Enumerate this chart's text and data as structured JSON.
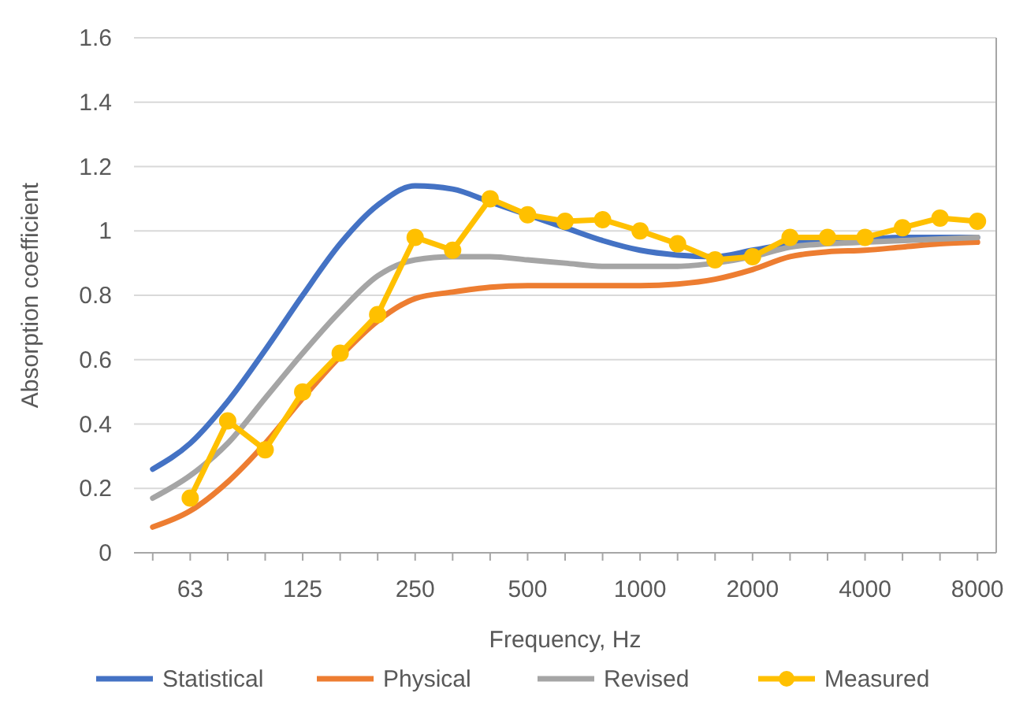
{
  "chart_data": {
    "type": "line",
    "xlabel": "Frequency, Hz",
    "ylabel": "Absorption coefficient",
    "categories": [
      null,
      "63",
      null,
      null,
      "125",
      null,
      null,
      "250",
      null,
      null,
      "500",
      null,
      null,
      "1000",
      null,
      null,
      "2000",
      null,
      null,
      "4000",
      null,
      null,
      "8000"
    ],
    "ylim": [
      0,
      1.6
    ],
    "yticks": [
      0,
      0.2,
      0.4,
      0.6,
      0.8,
      1,
      1.2,
      1.4,
      1.6
    ],
    "grid": "y",
    "legend": "bottom",
    "line_style": "solid",
    "series": [
      {
        "name": "Statistical",
        "color": "#4472c4",
        "marker": "none",
        "values": [
          0.26,
          0.34,
          0.47,
          0.63,
          0.8,
          0.96,
          1.08,
          1.14,
          1.13,
          1.09,
          1.05,
          1.01,
          0.97,
          0.94,
          0.925,
          0.92,
          0.94,
          0.96,
          0.97,
          0.975,
          0.98,
          0.98,
          0.98
        ]
      },
      {
        "name": "Physical",
        "color": "#ed7d31",
        "marker": "none",
        "values": [
          0.08,
          0.13,
          0.22,
          0.34,
          0.48,
          0.61,
          0.72,
          0.79,
          0.81,
          0.825,
          0.83,
          0.83,
          0.83,
          0.83,
          0.835,
          0.85,
          0.88,
          0.92,
          0.935,
          0.94,
          0.95,
          0.96,
          0.965
        ]
      },
      {
        "name": "Revised",
        "color": "#a5a5a5",
        "marker": "none",
        "values": [
          0.17,
          0.24,
          0.34,
          0.48,
          0.62,
          0.75,
          0.86,
          0.91,
          0.92,
          0.92,
          0.91,
          0.9,
          0.89,
          0.89,
          0.89,
          0.9,
          0.92,
          0.95,
          0.96,
          0.965,
          0.97,
          0.975,
          0.98
        ]
      },
      {
        "name": "Measured",
        "color": "#ffc000",
        "marker": "circle",
        "values": [
          null,
          0.17,
          0.41,
          0.32,
          0.5,
          0.62,
          0.74,
          0.98,
          0.94,
          1.1,
          1.05,
          1.03,
          1.035,
          1.0,
          0.96,
          0.91,
          0.92,
          0.98,
          0.98,
          0.98,
          1.01,
          1.04,
          1.03
        ]
      }
    ]
  }
}
